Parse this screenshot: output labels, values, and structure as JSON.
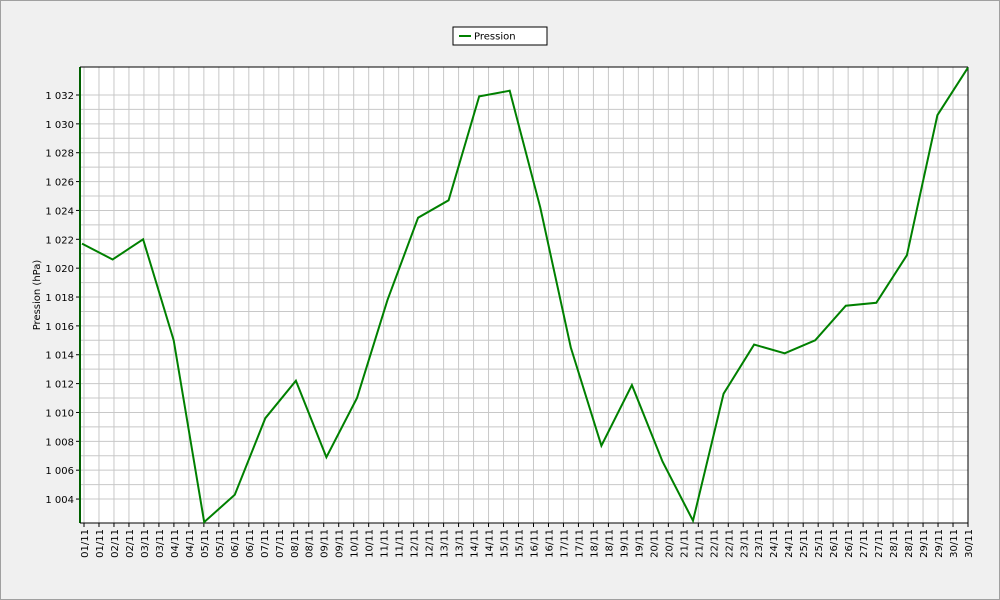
{
  "chart_data": {
    "type": "line",
    "y_label": "Pression (hPa)",
    "x_labels": [
      "01/11",
      "01/11",
      "02/11",
      "02/11",
      "03/11",
      "03/11",
      "04/11",
      "04/11",
      "05/11",
      "05/11",
      "06/11",
      "06/11",
      "07/11",
      "07/11",
      "08/11",
      "08/11",
      "09/11",
      "09/11",
      "10/11",
      "10/11",
      "11/11",
      "11/11",
      "12/11",
      "12/11",
      "13/11",
      "13/11",
      "14/11",
      "14/11",
      "15/11",
      "15/11",
      "16/11",
      "16/11",
      "17/11",
      "17/11",
      "18/11",
      "18/11",
      "19/11",
      "19/11",
      "20/11",
      "20/11",
      "21/11",
      "21/11",
      "22/11",
      "22/11",
      "23/11",
      "23/11",
      "24/11",
      "24/11",
      "25/11",
      "25/11",
      "26/11",
      "26/11",
      "27/11",
      "27/11",
      "28/11",
      "28/11",
      "29/11",
      "29/11",
      "30/11",
      "30/11"
    ],
    "series": [
      {
        "name": "Pression",
        "color": "#008000",
        "values": [
          1021.7,
          1020.6,
          1022.0,
          1015.0,
          1002.4,
          1004.3,
          1009.6,
          1012.2,
          1006.9,
          1011.0,
          1017.8,
          1023.5,
          1024.7,
          1031.9,
          1032.3,
          1024.2,
          1014.5,
          1007.7,
          1011.9,
          1006.6,
          1002.5,
          1011.3,
          1014.7,
          1014.1,
          1015.0,
          1017.4,
          1017.6,
          1020.9,
          1030.6,
          1033.9
        ]
      }
    ],
    "ylim": [
      1002.34,
      1033.94
    ],
    "yticks": [
      {
        "value": 1004,
        "label": "1 004"
      },
      {
        "value": 1006,
        "label": "1 006"
      },
      {
        "value": 1008,
        "label": "1 008"
      },
      {
        "value": 1010,
        "label": "1 010"
      },
      {
        "value": 1012,
        "label": "1 012"
      },
      {
        "value": 1014,
        "label": "1 014"
      },
      {
        "value": 1016,
        "label": "1 016"
      },
      {
        "value": 1018,
        "label": "1 018"
      },
      {
        "value": 1020,
        "label": "1 020"
      },
      {
        "value": 1022,
        "label": "1 022"
      },
      {
        "value": 1024,
        "label": "1 024"
      },
      {
        "value": 1026,
        "label": "1 026"
      },
      {
        "value": 1028,
        "label": "1 028"
      },
      {
        "value": 1030,
        "label": "1 030"
      },
      {
        "value": 1032,
        "label": "1 032"
      }
    ],
    "grid": true
  }
}
